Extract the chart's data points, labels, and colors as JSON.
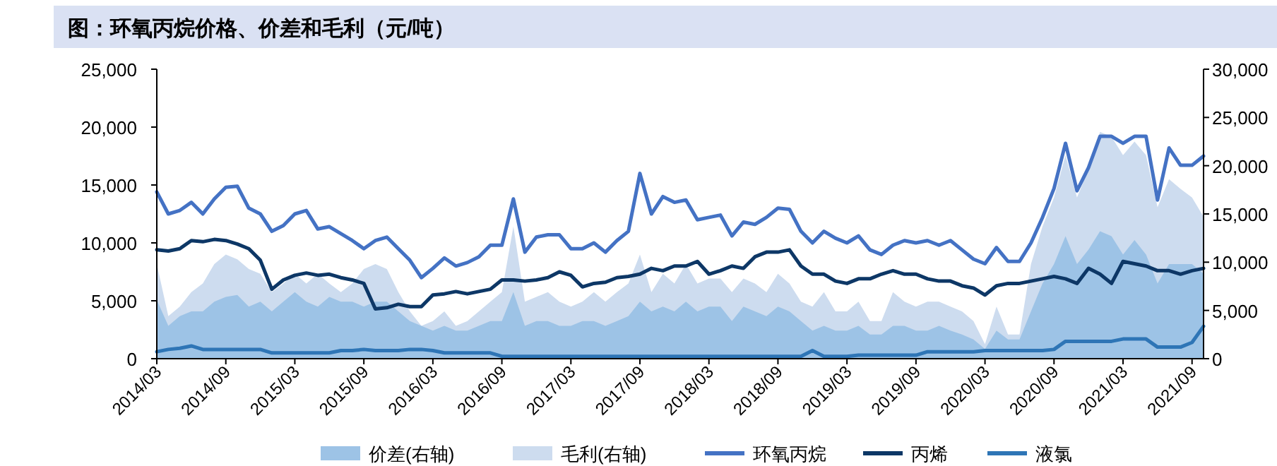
{
  "chart_data": {
    "type": "line",
    "title": "图：环氧丙烷价格、价差和毛利（元/吨）",
    "legend": "bottom",
    "x": [
      "2014-03",
      "2014-04",
      "2014-05",
      "2014-06",
      "2014-07",
      "2014-08",
      "2014-09",
      "2014-10",
      "2014-11",
      "2014-12",
      "2015-01",
      "2015-02",
      "2015-03",
      "2015-04",
      "2015-05",
      "2015-06",
      "2015-07",
      "2015-08",
      "2015-09",
      "2015-10",
      "2015-11",
      "2015-12",
      "2016-01",
      "2016-02",
      "2016-03",
      "2016-04",
      "2016-05",
      "2016-06",
      "2016-07",
      "2016-08",
      "2016-09",
      "2016-10",
      "2016-11",
      "2016-12",
      "2017-01",
      "2017-02",
      "2017-03",
      "2017-04",
      "2017-05",
      "2017-06",
      "2017-07",
      "2017-08",
      "2017-09",
      "2017-10",
      "2017-11",
      "2017-12",
      "2018-01",
      "2018-02",
      "2018-03",
      "2018-04",
      "2018-05",
      "2018-06",
      "2018-07",
      "2018-08",
      "2018-09",
      "2018-10",
      "2018-11",
      "2018-12",
      "2019-01",
      "2019-02",
      "2019-03",
      "2019-04",
      "2019-05",
      "2019-06",
      "2019-07",
      "2019-08",
      "2019-09",
      "2019-10",
      "2019-11",
      "2019-12",
      "2020-01",
      "2020-02",
      "2020-03",
      "2020-04",
      "2020-05",
      "2020-06",
      "2020-07",
      "2020-08",
      "2020-09",
      "2020-10",
      "2020-11",
      "2020-12",
      "2021-01",
      "2021-02",
      "2021-03",
      "2021-04",
      "2021-05",
      "2021-06",
      "2021-07",
      "2021-08",
      "2021-09",
      "2021-10"
    ],
    "xlim": [
      "2014-03",
      "2021-10"
    ],
    "xticks": [
      {
        "value": "2014-03",
        "label": "2014/03"
      },
      {
        "value": "2014-09",
        "label": "2014/09"
      },
      {
        "value": "2015-03",
        "label": "2015/03"
      },
      {
        "value": "2015-09",
        "label": "2015/09"
      },
      {
        "value": "2016-03",
        "label": "2016/03"
      },
      {
        "value": "2016-09",
        "label": "2016/09"
      },
      {
        "value": "2017-03",
        "label": "2017/03"
      },
      {
        "value": "2017-09",
        "label": "2017/09"
      },
      {
        "value": "2018-03",
        "label": "2018/03"
      },
      {
        "value": "2018-09",
        "label": "2018/09"
      },
      {
        "value": "2019-03",
        "label": "2019/03"
      },
      {
        "value": "2019-09",
        "label": "2019/09"
      },
      {
        "value": "2020-03",
        "label": "2020/03"
      },
      {
        "value": "2020-09",
        "label": "2020/09"
      },
      {
        "value": "2021-03",
        "label": "2021/03"
      },
      {
        "value": "2021-09",
        "label": "2021/09"
      }
    ],
    "ylim": [
      0,
      25000
    ],
    "yticks": [
      0,
      {
        "value": 5000,
        "label": "5,000"
      },
      {
        "value": 10000,
        "label": "10,000"
      },
      {
        "value": 15000,
        "label": "15,000"
      },
      {
        "value": 20000,
        "label": "20,000"
      },
      {
        "value": 25000,
        "label": "25,000"
      }
    ],
    "y2lim": [
      0,
      30000
    ],
    "y2ticks": [
      0,
      {
        "value": 5000,
        "label": "5,000"
      },
      {
        "value": 10000,
        "label": "10,000"
      },
      {
        "value": 15000,
        "label": "15,000"
      },
      {
        "value": 20000,
        "label": "20,000"
      },
      {
        "value": 25000,
        "label": "25,000"
      },
      {
        "value": 30000,
        "label": "30,000"
      }
    ],
    "series": [
      {
        "name": "价差(右轴)",
        "type": "area",
        "axis": "y2",
        "color": "#9dc3e6",
        "values": [
          6100,
          3400,
          4400,
          4900,
          4900,
          5900,
          6400,
          6600,
          5400,
          5900,
          4900,
          5900,
          6900,
          5900,
          5400,
          6400,
          5900,
          5900,
          5400,
          5900,
          5900,
          4900,
          3900,
          3400,
          2900,
          3400,
          2900,
          2900,
          3400,
          3900,
          3900,
          6900,
          3400,
          3900,
          3900,
          3400,
          3400,
          3900,
          3900,
          3400,
          3900,
          4400,
          5900,
          4900,
          5400,
          4900,
          5900,
          4900,
          5400,
          5400,
          3900,
          5400,
          4900,
          4400,
          5400,
          4900,
          3900,
          2900,
          3400,
          2900,
          2900,
          3400,
          2500,
          2500,
          3400,
          3400,
          2900,
          2900,
          3400,
          2900,
          2500,
          2000,
          1000,
          2900,
          2000,
          2000,
          4900,
          7800,
          9800,
          12700,
          9800,
          11300,
          13200,
          12700,
          10800,
          12300,
          10800,
          7800,
          9800,
          9800,
          9800,
          8800
        ]
      },
      {
        "name": "毛利(右轴)",
        "type": "area",
        "axis": "y2",
        "color": "#cddcef",
        "values": [
          9800,
          4400,
          5400,
          6900,
          7800,
          9800,
          10800,
          10300,
          9300,
          8800,
          6900,
          7800,
          8800,
          7800,
          8800,
          7800,
          6900,
          7800,
          9300,
          9800,
          9300,
          6900,
          4900,
          3400,
          3900,
          4900,
          3400,
          3900,
          4900,
          5900,
          6900,
          13700,
          5900,
          6400,
          6900,
          5900,
          5400,
          5900,
          6900,
          5900,
          6900,
          7800,
          10800,
          6900,
          8800,
          7800,
          9800,
          7800,
          8300,
          8300,
          6900,
          8300,
          7800,
          6900,
          8800,
          7800,
          5900,
          5400,
          6900,
          4900,
          4900,
          5900,
          3900,
          3900,
          6900,
          5900,
          5400,
          5900,
          5900,
          5400,
          4900,
          3900,
          1500,
          5400,
          2500,
          2500,
          9800,
          13700,
          16700,
          21100,
          16700,
          19600,
          23500,
          23000,
          21100,
          22500,
          21100,
          15700,
          18600,
          17600,
          16700,
          14700
        ]
      },
      {
        "name": "环氧丙烷",
        "color": "#4472c4",
        "values": [
          14400,
          12500,
          12800,
          13500,
          12500,
          13800,
          14800,
          14900,
          13000,
          12500,
          11000,
          11500,
          12500,
          12800,
          11200,
          11400,
          10800,
          10200,
          9500,
          10200,
          10500,
          9500,
          8500,
          7000,
          7800,
          8700,
          8000,
          8300,
          8800,
          9800,
          9800,
          13800,
          9200,
          10500,
          10700,
          10700,
          9500,
          9500,
          10000,
          9200,
          10200,
          11000,
          16000,
          12500,
          14000,
          13500,
          13700,
          12000,
          12200,
          12400,
          10600,
          11800,
          11600,
          12200,
          13000,
          12900,
          11000,
          10000,
          11000,
          10400,
          10000,
          10600,
          9400,
          9000,
          9800,
          10200,
          10000,
          10200,
          9800,
          10200,
          9400,
          8600,
          8200,
          9600,
          8400,
          8400,
          10000,
          12200,
          14700,
          18600,
          14500,
          16500,
          19200,
          19200,
          18600,
          19200,
          19200,
          13700,
          18200,
          16700,
          16700,
          17500
        ]
      },
      {
        "name": "丙烯",
        "color": "#0d3766",
        "values": [
          9400,
          9300,
          9500,
          10200,
          10100,
          10300,
          10200,
          9900,
          9500,
          8500,
          6000,
          6800,
          7200,
          7400,
          7200,
          7300,
          7000,
          6800,
          6500,
          4300,
          4400,
          4700,
          4500,
          4500,
          5500,
          5600,
          5800,
          5600,
          5800,
          6000,
          6800,
          6800,
          6700,
          6800,
          7000,
          7500,
          7200,
          6200,
          6500,
          6600,
          7000,
          7100,
          7300,
          7800,
          7600,
          8000,
          8000,
          8400,
          7300,
          7600,
          8000,
          7800,
          8800,
          9200,
          9200,
          9400,
          8000,
          7300,
          7300,
          6700,
          6500,
          6900,
          6900,
          7300,
          7600,
          7300,
          7300,
          6900,
          6700,
          6700,
          6300,
          6100,
          5500,
          6300,
          6500,
          6500,
          6700,
          6900,
          7100,
          6900,
          6500,
          7800,
          7300,
          6500,
          8400,
          8200,
          8000,
          7600,
          7600,
          7300,
          7600,
          7800
        ]
      },
      {
        "name": "液氯",
        "color": "#2e75b6",
        "values": [
          600,
          800,
          900,
          1100,
          800,
          800,
          800,
          800,
          800,
          800,
          500,
          500,
          500,
          500,
          500,
          500,
          700,
          700,
          800,
          700,
          700,
          700,
          800,
          800,
          700,
          500,
          500,
          500,
          500,
          500,
          200,
          200,
          200,
          200,
          200,
          200,
          200,
          200,
          200,
          200,
          200,
          200,
          200,
          200,
          200,
          200,
          200,
          200,
          200,
          200,
          200,
          200,
          200,
          200,
          200,
          200,
          200,
          700,
          200,
          200,
          200,
          300,
          300,
          300,
          300,
          300,
          300,
          600,
          600,
          600,
          600,
          600,
          700,
          700,
          700,
          700,
          700,
          700,
          800,
          1500,
          1500,
          1500,
          1500,
          1500,
          1700,
          1700,
          1700,
          1000,
          1000,
          1000,
          1400,
          2800
        ]
      }
    ]
  }
}
